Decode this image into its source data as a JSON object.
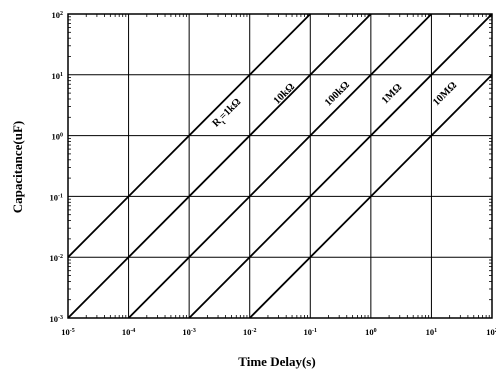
{
  "chart_data": {
    "type": "line",
    "xlabel": "Time Delay(s)",
    "ylabel": "Capacitance(uF)",
    "xscale": "log",
    "yscale": "log",
    "xlim": [
      1e-05,
      100
    ],
    "ylim": [
      0.001,
      100
    ],
    "grid": true,
    "x_ticks": [
      {
        "base": "10",
        "exp": "-5"
      },
      {
        "base": "10",
        "exp": "-4"
      },
      {
        "base": "10",
        "exp": "-3"
      },
      {
        "base": "10",
        "exp": "-2"
      },
      {
        "base": "10",
        "exp": "-1"
      },
      {
        "base": "10",
        "exp": "0"
      },
      {
        "base": "10",
        "exp": "1"
      },
      {
        "base": "10",
        "exp": "2"
      }
    ],
    "y_ticks": [
      {
        "base": "10",
        "exp": "-3"
      },
      {
        "base": "10",
        "exp": "-2"
      },
      {
        "base": "10",
        "exp": "-1"
      },
      {
        "base": "10",
        "exp": "0"
      },
      {
        "base": "10",
        "exp": "1"
      },
      {
        "base": "10",
        "exp": "2"
      }
    ],
    "series": [
      {
        "name": "R =1kΩ",
        "label_main": "R",
        "label_sub": "t",
        "label_rest": "=1kΩ",
        "x": [
          1e-05,
          0.1
        ],
        "y": [
          0.01,
          100
        ]
      },
      {
        "name": "10kΩ",
        "label_main": "10kΩ",
        "x": [
          1e-05,
          1
        ],
        "y": [
          0.001,
          100
        ]
      },
      {
        "name": "100kΩ",
        "label_main": "100kΩ",
        "x": [
          0.0001,
          10
        ],
        "y": [
          0.001,
          100
        ]
      },
      {
        "name": "1MΩ",
        "label_main": "1MΩ",
        "x": [
          0.001,
          100
        ],
        "y": [
          0.001,
          100
        ]
      },
      {
        "name": "10MΩ",
        "label_main": "10MΩ",
        "x": [
          0.01,
          100
        ],
        "y": [
          0.001,
          10
        ]
      }
    ]
  }
}
